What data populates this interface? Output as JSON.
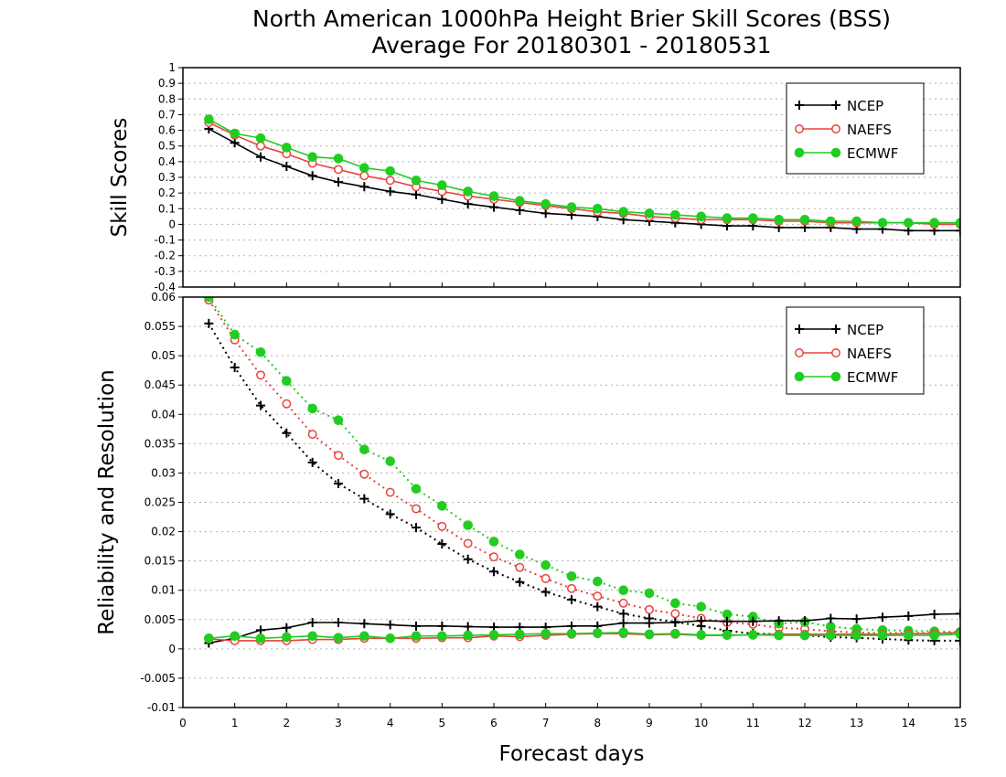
{
  "title_line1": "North American 1000hPa Height Brier Skill Scores (BSS)",
  "title_line2": "Average For 20180301 - 20180531",
  "xlabel": "Forecast days",
  "x_ticks": [
    "0",
    "1",
    "2",
    "3",
    "4",
    "5",
    "6",
    "7",
    "8",
    "9",
    "10",
    "11",
    "12",
    "13",
    "14",
    "15"
  ],
  "colors": {
    "NCEP": "#000000",
    "NAEFS": "#e8423c",
    "ECMWF": "#22cc22",
    "grid": "#b0b0b0"
  },
  "chart_data": [
    {
      "type": "line",
      "ylabel": "Skill Scores",
      "xlim": [
        0,
        15
      ],
      "ylim": [
        -0.4,
        1
      ],
      "y_ticks": [
        "-0.4",
        "-0.3",
        "-0.2",
        "-0.1",
        "0",
        "0.1",
        "0.2",
        "0.3",
        "0.4",
        "0.5",
        "0.6",
        "0.7",
        "0.8",
        "0.9",
        "1"
      ],
      "grid": "horizontal dotted",
      "legend_position": "top-right",
      "legend": [
        "NCEP",
        "NAEFS",
        "ECMWF"
      ],
      "x": [
        0.5,
        1,
        1.5,
        2,
        2.5,
        3,
        3.5,
        4,
        4.5,
        5,
        5.5,
        6,
        6.5,
        7,
        7.5,
        8,
        8.5,
        9,
        9.5,
        10,
        10.5,
        11,
        11.5,
        12,
        12.5,
        13,
        13.5,
        14,
        14.5,
        15
      ],
      "series": [
        {
          "name": "NCEP",
          "style": "solid",
          "marker": "plus",
          "values": [
            0.61,
            0.52,
            0.43,
            0.37,
            0.31,
            0.27,
            0.24,
            0.21,
            0.19,
            0.16,
            0.13,
            0.11,
            0.09,
            0.07,
            0.06,
            0.05,
            0.03,
            0.02,
            0.01,
            0.0,
            -0.01,
            -0.01,
            -0.02,
            -0.02,
            -0.02,
            -0.03,
            -0.03,
            -0.04,
            -0.04,
            -0.04
          ]
        },
        {
          "name": "NAEFS",
          "style": "solid",
          "marker": "open-circle",
          "values": [
            0.65,
            0.57,
            0.5,
            0.45,
            0.39,
            0.35,
            0.31,
            0.28,
            0.24,
            0.21,
            0.18,
            0.16,
            0.14,
            0.12,
            0.1,
            0.08,
            0.07,
            0.05,
            0.04,
            0.03,
            0.03,
            0.03,
            0.02,
            0.02,
            0.01,
            0.01,
            0.01,
            0.01,
            0.0,
            0.0
          ]
        },
        {
          "name": "ECMWF",
          "style": "solid",
          "marker": "filled-circle",
          "values": [
            0.67,
            0.58,
            0.55,
            0.49,
            0.43,
            0.42,
            0.36,
            0.34,
            0.28,
            0.25,
            0.21,
            0.18,
            0.15,
            0.13,
            0.11,
            0.1,
            0.08,
            0.07,
            0.06,
            0.05,
            0.04,
            0.04,
            0.03,
            0.03,
            0.02,
            0.02,
            0.01,
            0.01,
            0.01,
            0.01
          ]
        }
      ]
    },
    {
      "type": "line",
      "ylabel": "Reliability and Resolution",
      "xlim": [
        0,
        15
      ],
      "ylim": [
        -0.01,
        0.06
      ],
      "y_ticks": [
        "-0.01",
        "-0.005",
        "0",
        "0.005",
        "0.01",
        "0.015",
        "0.02",
        "0.025",
        "0.03",
        "0.035",
        "0.04",
        "0.045",
        "0.05",
        "0.055",
        "0.06"
      ],
      "grid": "horizontal dotted",
      "legend_position": "top-right",
      "legend": [
        "NCEP",
        "NAEFS",
        "ECMWF"
      ],
      "x": [
        0.5,
        1,
        1.5,
        2,
        2.5,
        3,
        3.5,
        4,
        4.5,
        5,
        5.5,
        6,
        6.5,
        7,
        7.5,
        8,
        8.5,
        9,
        9.5,
        10,
        10.5,
        11,
        11.5,
        12,
        12.5,
        13,
        13.5,
        14,
        14.5,
        15
      ],
      "series": [
        {
          "name": "NCEP",
          "style": "dotted",
          "marker": "plus",
          "values": [
            0.0555,
            0.048,
            0.0415,
            0.0368,
            0.0318,
            0.0282,
            0.0256,
            0.023,
            0.0207,
            0.0179,
            0.0153,
            0.0132,
            0.0114,
            0.0097,
            0.0084,
            0.0072,
            0.006,
            0.0052,
            0.0046,
            0.0039,
            0.0031,
            0.0026,
            0.0025,
            0.0023,
            0.002,
            0.0019,
            0.0017,
            0.0015,
            0.0014,
            0.0014
          ]
        },
        {
          "name": "NAEFS",
          "style": "dotted",
          "marker": "open-circle",
          "values": [
            0.0595,
            0.0527,
            0.0467,
            0.0418,
            0.0366,
            0.033,
            0.0298,
            0.0267,
            0.0239,
            0.0209,
            0.018,
            0.0157,
            0.0139,
            0.012,
            0.0103,
            0.009,
            0.0078,
            0.0067,
            0.006,
            0.0052,
            0.0045,
            0.0042,
            0.0036,
            0.0034,
            0.003,
            0.0028,
            0.0027,
            0.0027,
            0.0027,
            0.0027
          ]
        },
        {
          "name": "ECMWF",
          "style": "dotted",
          "marker": "filled-circle",
          "values": [
            0.06,
            0.0536,
            0.0506,
            0.0457,
            0.041,
            0.039,
            0.034,
            0.032,
            0.0273,
            0.0244,
            0.0211,
            0.0183,
            0.0161,
            0.0143,
            0.0124,
            0.0115,
            0.01,
            0.0095,
            0.0078,
            0.0072,
            0.0059,
            0.0055,
            0.0043,
            0.0046,
            0.0038,
            0.0034,
            0.0032,
            0.0031,
            0.003,
            0.0029
          ]
        },
        {
          "name": "NCEP",
          "style": "solid",
          "marker": "plus",
          "values": [
            0.001,
            0.0018,
            0.0032,
            0.0036,
            0.0045,
            0.0045,
            0.0043,
            0.0041,
            0.0039,
            0.0039,
            0.0038,
            0.0037,
            0.0037,
            0.0037,
            0.0039,
            0.0039,
            0.0044,
            0.0044,
            0.0045,
            0.0048,
            0.0047,
            0.0047,
            0.0048,
            0.0048,
            0.0052,
            0.0051,
            0.0054,
            0.0056,
            0.0059,
            0.006
          ]
        },
        {
          "name": "NAEFS",
          "style": "solid",
          "marker": "open-circle",
          "values": [
            0.0017,
            0.0014,
            0.0014,
            0.0014,
            0.0016,
            0.0016,
            0.0018,
            0.0018,
            0.0018,
            0.0019,
            0.0019,
            0.0022,
            0.0021,
            0.0023,
            0.0025,
            0.0026,
            0.0026,
            0.0024,
            0.0025,
            0.0023,
            0.0023,
            0.0024,
            0.0025,
            0.0025,
            0.0025,
            0.0025,
            0.0025,
            0.0026,
            0.0026,
            0.0028
          ]
        },
        {
          "name": "ECMWF",
          "style": "solid",
          "marker": "filled-circle",
          "values": [
            0.0018,
            0.0022,
            0.0018,
            0.002,
            0.0022,
            0.0019,
            0.0022,
            0.0018,
            0.0022,
            0.0022,
            0.0023,
            0.0024,
            0.0025,
            0.0026,
            0.0026,
            0.0027,
            0.0028,
            0.0025,
            0.0026,
            0.0024,
            0.0024,
            0.0024,
            0.0023,
            0.0023,
            0.0023,
            0.0023,
            0.0023,
            0.0023,
            0.0023,
            0.0025
          ]
        }
      ]
    }
  ]
}
